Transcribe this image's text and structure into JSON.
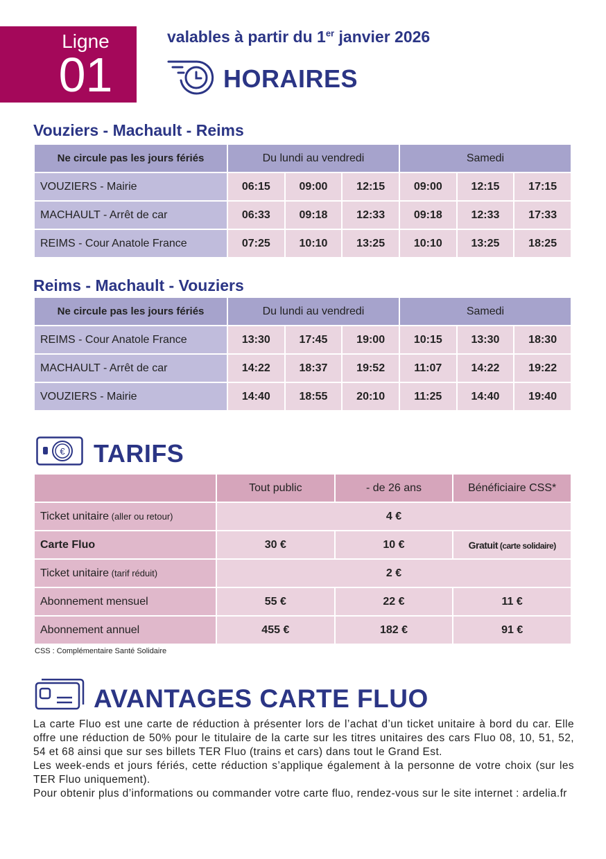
{
  "header": {
    "ligne_label": "Ligne",
    "ligne_number": "01",
    "validity": "valables à partir du 1",
    "validity_sup": "er",
    "validity_rest": " janvier 2026",
    "title": "HORAIRES",
    "clock_icon": "clock-speed-icon"
  },
  "colors": {
    "magenta": "#a4085a",
    "navy": "#2b3585",
    "header_lavender": "#a6a3cc",
    "label_lavender": "#c0bcdc",
    "time_pink": "#ead5e0"
  },
  "schedules": [
    {
      "title": "Vouziers - Machault - Reims",
      "note": "Ne circule pas les jours fériés",
      "col_weekday": "Du lundi au vendredi",
      "col_saturday": "Samedi",
      "rows": [
        {
          "stop": "VOUZIERS - Mairie",
          "times": [
            "06:15",
            "09:00",
            "12:15",
            "09:00",
            "12:15",
            "17:15"
          ]
        },
        {
          "stop": "MACHAULT - Arrêt de car",
          "times": [
            "06:33",
            "09:18",
            "12:33",
            "09:18",
            "12:33",
            "17:33"
          ]
        },
        {
          "stop": "REIMS - Cour Anatole France",
          "times": [
            "07:25",
            "10:10",
            "13:25",
            "10:10",
            "13:25",
            "18:25"
          ]
        }
      ]
    },
    {
      "title": "Reims - Machault - Vouziers",
      "note": "Ne circule pas les jours fériés",
      "col_weekday": "Du lundi au vendredi",
      "col_saturday": "Samedi",
      "rows": [
        {
          "stop": "REIMS - Cour Anatole France",
          "times": [
            "13:30",
            "17:45",
            "19:00",
            "10:15",
            "13:30",
            "18:30"
          ]
        },
        {
          "stop": "MACHAULT - Arrêt de car",
          "times": [
            "14:22",
            "18:37",
            "19:52",
            "11:07",
            "14:22",
            "19:22"
          ]
        },
        {
          "stop": "VOUZIERS - Mairie",
          "times": [
            "14:40",
            "18:55",
            "20:10",
            "11:25",
            "14:40",
            "19:40"
          ]
        }
      ]
    }
  ],
  "tarifs": {
    "title": "TARIFS",
    "icon": "euro-card-icon",
    "columns": [
      "Tout public",
      "- de 26 ans",
      "Bénéficiaire CSS*"
    ],
    "rows": [
      {
        "label": "Ticket unitaire",
        "label_small": " (aller ou retour)",
        "span": "4 €"
      },
      {
        "label": "Carte Fluo",
        "bold": true,
        "values": [
          "30 €",
          "10 €",
          "Gratuit"
        ],
        "last_small": " (carte solidaire)"
      },
      {
        "label": "Ticket unitaire",
        "label_small": " (tarif réduit)",
        "span": "2 €"
      },
      {
        "label": "Abonnement mensuel",
        "values": [
          "55 €",
          "22 €",
          "11 €"
        ]
      },
      {
        "label": "Abonnement annuel",
        "values": [
          "455 €",
          "182 €",
          "91 €"
        ]
      }
    ],
    "footnote": "CSS : Complémentaire Santé Solidaire"
  },
  "avantages": {
    "title": "AVANTAGES CARTE FLUO",
    "icon": "card-icon",
    "paragraphs": [
      "La carte Fluo est une carte de réduction à présenter lors de l’achat d’un ticket unitaire à bord du car. Elle offre une réduction de 50% pour le titulaire de la carte sur les titres unitaires des cars Fluo 08, 10, 51, 52, 54 et 68 ainsi que sur ses billets TER Fluo (trains et cars) dans tout le Grand Est.",
      "Les week-ends et jours fériés, cette réduction s’applique également à la personne de votre choix (sur les TER Fluo uniquement).",
      "Pour obtenir plus d’informations ou commander votre carte fluo, rendez-vous sur le site internet : ardelia.fr"
    ]
  }
}
